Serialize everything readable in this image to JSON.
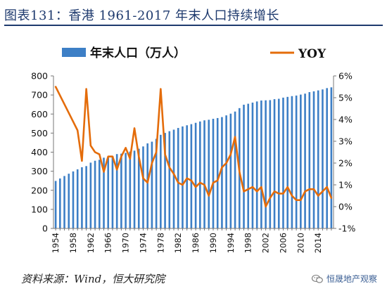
{
  "title": "图表131：香港 1961-2017 年末人口持续增长",
  "source": "资料来源：Wind，恒大研究院",
  "watermark": "恒晟地产观察",
  "colors": {
    "bar": "#3d7fc6",
    "line": "#e46c0a",
    "title": "#1e3a6e"
  },
  "chart_data": {
    "type": "bar+line",
    "legend": [
      "年末人口（万人）",
      "YOY"
    ],
    "legend_position": "top",
    "years": [
      1954,
      1955,
      1956,
      1957,
      1958,
      1959,
      1960,
      1961,
      1962,
      1963,
      1964,
      1965,
      1966,
      1967,
      1968,
      1969,
      1970,
      1971,
      1972,
      1973,
      1974,
      1975,
      1976,
      1977,
      1978,
      1979,
      1980,
      1981,
      1982,
      1983,
      1984,
      1985,
      1986,
      1987,
      1988,
      1989,
      1990,
      1991,
      1992,
      1993,
      1994,
      1995,
      1996,
      1997,
      1998,
      1999,
      2000,
      2001,
      2002,
      2003,
      2004,
      2005,
      2006,
      2007,
      2008,
      2009,
      2010,
      2011,
      2012,
      2013,
      2014,
      2015,
      2016,
      2017
    ],
    "series": [
      {
        "name": "年末人口（万人）",
        "axis": "left",
        "values": [
          249,
          262,
          275,
          287,
          299,
          310,
          321,
          327,
          345,
          355,
          360,
          371,
          377,
          380,
          390,
          392,
          396,
          403,
          408,
          418,
          430,
          446,
          455,
          470,
          491,
          501,
          510,
          518,
          527,
          535,
          541,
          547,
          554,
          561,
          567,
          570,
          575,
          579,
          584,
          593,
          602,
          613,
          631,
          649,
          654,
          660,
          666,
          671,
          672,
          673,
          678,
          680,
          686,
          690,
          694,
          697,
          702,
          707,
          715,
          719,
          724,
          729,
          736,
          740
        ]
      },
      {
        "name": "YOY",
        "axis": "right",
        "values": [
          5.5,
          5.1,
          4.7,
          4.3,
          3.9,
          3.5,
          2.1,
          5.4,
          2.8,
          2.5,
          2.4,
          1.6,
          2.3,
          2.3,
          1.7,
          2.3,
          2.7,
          2.2,
          3.6,
          2.3,
          1.3,
          1.1,
          2.0,
          2.5,
          5.4,
          2.4,
          1.8,
          1.5,
          1.1,
          1.0,
          1.3,
          1.2,
          0.9,
          1.1,
          1.0,
          0.5,
          1.1,
          1.2,
          1.8,
          2.0,
          2.4,
          3.2,
          1.6,
          0.7,
          0.8,
          0.9,
          0.7,
          0.9,
          0.0,
          0.4,
          0.7,
          0.6,
          0.6,
          0.9,
          0.5,
          0.3,
          0.3,
          0.7,
          0.8,
          0.8,
          0.5,
          0.7,
          0.9,
          0.4
        ]
      }
    ],
    "y_left": {
      "min": 0,
      "max": 800,
      "step": 100,
      "ticks": [
        "0",
        "100",
        "200",
        "300",
        "400",
        "500",
        "600",
        "700",
        "800"
      ]
    },
    "y_right": {
      "min": -1,
      "max": 6,
      "step": 1,
      "ticks": [
        "-1%",
        "0%",
        "1%",
        "2%",
        "3%",
        "4%",
        "5%",
        "6%"
      ]
    },
    "x_tick_labels": [
      "1954",
      "1958",
      "1962",
      "1966",
      "1970",
      "1974",
      "1978",
      "1982",
      "1986",
      "1990",
      "1994",
      "1998",
      "2002",
      "2006",
      "2010",
      "2014"
    ],
    "grid": false
  }
}
